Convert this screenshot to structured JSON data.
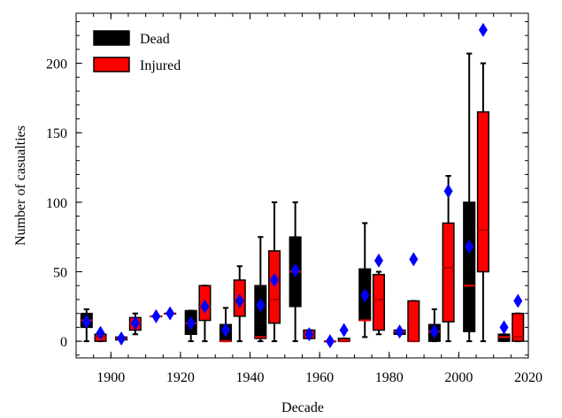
{
  "chart_data": {
    "type": "box",
    "xlabel": "Decade",
    "ylabel": "Number of casualties",
    "x": [
      1890,
      1900,
      1910,
      1920,
      1930,
      1940,
      1950,
      1960,
      1970,
      1980,
      1990,
      2000,
      2010
    ],
    "xlim": [
      1890,
      2020
    ],
    "xticks": [
      1900,
      1920,
      1940,
      1960,
      1980,
      2000,
      2020
    ],
    "ylim": [
      -12,
      236
    ],
    "yticks": [
      0,
      50,
      100,
      150,
      200
    ],
    "legend": "upper left",
    "mean_color": "#0000ff",
    "series": [
      {
        "name": "Dead",
        "color": "#000000",
        "median_color": "#ff0000",
        "whisker_low": [
          0,
          1,
          18,
          0,
          0,
          0,
          0,
          0,
          3,
          5,
          0,
          0,
          0
        ],
        "q1": [
          10,
          1,
          18,
          5,
          0,
          2,
          25,
          0,
          15,
          5,
          0,
          7,
          0
        ],
        "median": [
          15,
          2,
          18,
          13,
          0,
          3,
          50,
          0,
          15,
          7,
          7,
          40,
          3
        ],
        "q3": [
          20,
          3,
          18,
          22,
          12,
          40,
          75,
          0,
          52,
          8,
          12,
          100,
          5
        ],
        "whisker_high": [
          23,
          3,
          18,
          22,
          24,
          75,
          100,
          0,
          85,
          8,
          23,
          207,
          5
        ],
        "mean": [
          14,
          2,
          18,
          13,
          8,
          26,
          51,
          0,
          33,
          7,
          7,
          68,
          10
        ]
      },
      {
        "name": "Injured",
        "color": "#ff0000",
        "median_color": "#b00000",
        "whisker_low": [
          0,
          5,
          20,
          0,
          0,
          0,
          2,
          0,
          5,
          0,
          0,
          0,
          0
        ],
        "q1": [
          0,
          8,
          20,
          15,
          18,
          13,
          2,
          0,
          8,
          0,
          14,
          50,
          0
        ],
        "median": [
          3,
          13,
          20,
          25,
          28,
          30,
          5,
          0,
          30,
          0,
          53,
          80,
          3
        ],
        "q3": [
          5,
          17,
          20,
          40,
          44,
          65,
          8,
          2,
          48,
          29,
          85,
          165,
          20
        ],
        "whisker_high": [
          5,
          20,
          20,
          40,
          54,
          100,
          8,
          2,
          50,
          29,
          119,
          200,
          20
        ],
        "mean": [
          6,
          13,
          20,
          25,
          29,
          44,
          5,
          8,
          58,
          59,
          108,
          224,
          29
        ]
      }
    ]
  }
}
